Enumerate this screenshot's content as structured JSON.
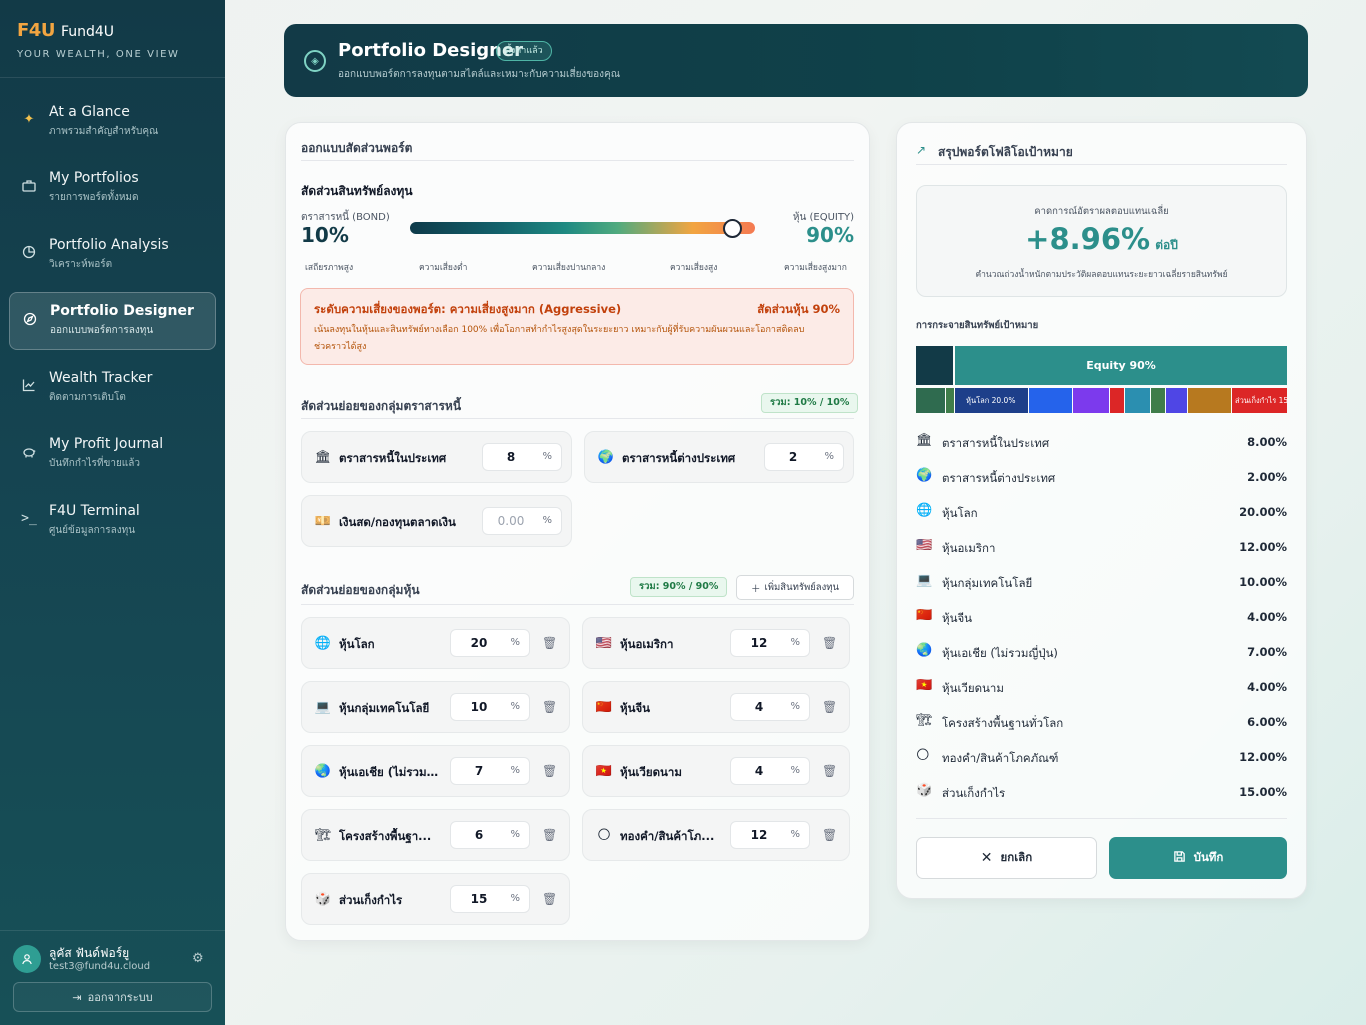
{
  "brand": {
    "logo": "F4U",
    "name": "Fund4U",
    "tagline": "YOUR WEALTH, ONE VIEW"
  },
  "nav": [
    {
      "title": "At a Glance",
      "sub": "ภาพรวมสำคัญสำหรับคุณ",
      "icon": "sparkles-icon"
    },
    {
      "title": "My Portfolios",
      "sub": "รายการพอร์ตทั้งหมด",
      "icon": "briefcase-icon"
    },
    {
      "title": "Portfolio Analysis",
      "sub": "วิเคราะห์พอร์ต",
      "icon": "pie-chart-icon"
    },
    {
      "title": "Portfolio Designer",
      "sub": "ออกแบบพอร์ตการลงทุน",
      "icon": "compass-icon",
      "active": true
    },
    {
      "title": "Wealth Tracker",
      "sub": "ติดตามการเติบโต",
      "icon": "line-chart-icon"
    },
    {
      "title": "My Profit Journal",
      "sub": "บันทึกกำไรที่ขายแล้ว",
      "icon": "piggy-bank-icon"
    },
    {
      "title": "F4U Terminal",
      "sub": "ศูนย์ข้อมูลการลงทุน",
      "icon": "terminal-icon"
    }
  ],
  "user": {
    "name": "ลูคัส ฟันด์ฟอร์ยู",
    "email": "test3@fund4u.cloud",
    "logout": "ออกจากระบบ"
  },
  "header": {
    "title": "Portfolio Designer",
    "badge": "ตั้งค่าแล้ว",
    "subtitle": "ออกแบบพอร์ตการลงทุนตามสไตล์และเหมาะกับความเสี่ยงของคุณ"
  },
  "designer": {
    "title": "ออกแบบสัดส่วนพอร์ต",
    "allocation_title": "สัดส่วนสินทรัพย์ลงทุน",
    "bond_label": "ตราสารหนี้ (BOND)",
    "bond_value": "10%",
    "equity_label": "หุ้น (EQUITY)",
    "equity_value": "90%",
    "equity_fraction": 0.9,
    "scale": [
      "เสถียรภาพสูง",
      "ความเสี่ยงต่ำ",
      "ความเสี่ยงปานกลาง",
      "ความเสี่ยงสูง",
      "ความเสี่ยงสูงมาก"
    ],
    "risk": {
      "title": "ระดับความเสี่ยงของพอร์ต: ความเสี่ยงสูงมาก (Aggressive)",
      "ratio": "สัดส่วนหุ้น 90%",
      "desc1": "เน้นลงทุนในหุ้นและสินทรัพย์ทางเลือก 100% เพื่อโอกาสทำกำไรสูงสุดในระยะยาว เหมาะกับผู้ที่รับความผันผวนและโอกาสติดลบ",
      "desc2": "ช่วคราวได้สูง"
    },
    "bond_section": {
      "title": "สัดส่วนย่อยของกลุ่มตราสารหนี้",
      "total": "รวม: 10% / 10%"
    },
    "bonds": [
      {
        "label": "ตราสารหนี้ในประเทศ",
        "value": "8",
        "icon": "bank-icon",
        "glyph": "🏛"
      },
      {
        "label": "ตราสารหนี้ต่างประเทศ",
        "value": "2",
        "icon": "globe-icon",
        "glyph": "🌍"
      },
      {
        "label": "เงินสด/กองทุนตลาดเงิน",
        "value": "0.00",
        "icon": "cash-icon",
        "glyph": "💴"
      }
    ],
    "equity_section": {
      "title": "สัดส่วนย่อยของกลุ่มหุ้น",
      "total": "รวม: 90% / 90%",
      "add": "เพิ่มสินทรัพย์ลงทุน"
    },
    "equities": [
      {
        "label": "หุ้นโลก",
        "value": "20",
        "icon": "world-icon",
        "glyph": "🌐"
      },
      {
        "label": "หุ้นอเมริกา",
        "value": "12",
        "icon": "us-flag-icon",
        "glyph": "🇺🇸"
      },
      {
        "label": "หุ้นกลุ่มเทคโนโลยี",
        "value": "10",
        "icon": "laptop-icon",
        "glyph": "💻"
      },
      {
        "label": "หุ้นจีน",
        "value": "4",
        "icon": "china-flag-icon",
        "glyph": "🇨🇳"
      },
      {
        "label": "หุ้นเอเชีย (ไม่รวม...",
        "value": "7",
        "icon": "globe-asia-icon",
        "glyph": "🌏"
      },
      {
        "label": "หุ้นเวียดนาม",
        "value": "4",
        "icon": "vietnam-flag-icon",
        "glyph": "🇻🇳"
      },
      {
        "label": "โครงสร้างพื้นฐา...",
        "value": "6",
        "icon": "crane-icon",
        "glyph": "🏗"
      },
      {
        "label": "ทองคำ/สินค้าโภ...",
        "value": "12",
        "icon": "gold-icon",
        "glyph": "🌕"
      },
      {
        "label": "ส่วนเก็งกำไร",
        "value": "15",
        "icon": "speculative-icon",
        "glyph": "🎲"
      }
    ],
    "pct": "%"
  },
  "summary": {
    "title": "สรุปพอร์ตโฟลิโอเป้าหมาย",
    "forecast_label": "คาดการณ์อัตราผลตอบแทนเฉลี่ย",
    "forecast_value": "+8.96%",
    "forecast_unit": "ต่อปี",
    "forecast_note": "คำนวณถ่วงน้ำหนักตามประวัติผลตอบแทนระยะยาวเฉลี่ยรายสินทรัพย์",
    "dist_title": "การกระจายสินทรัพย์เป้าหมาย",
    "equity_bar_label": "Equity 90%",
    "world_bar_label": "หุ้นโลก 20.0%",
    "spec_bar_label": "ส่วนเก็งกำไร 15",
    "bar_colors": {
      "bond_domestic": "#123a47",
      "bond_foreign": "#2f6b4f",
      "world": "#1d3f8a",
      "us": "#2563eb",
      "tech": "#7c3aed",
      "china": "#dc2626",
      "asia": "#2b8fb0",
      "vietnam": "#3f7d4a",
      "infra": "#4f46e5",
      "gold": "#b7791f",
      "spec": "#dc2626",
      "equity": "#2c8f8b"
    },
    "items": [
      {
        "label": "ตราสารหนี้ในประเทศ",
        "value": "8.00%",
        "icon": "bank-icon",
        "glyph": "🏛"
      },
      {
        "label": "ตราสารหนี้ต่างประเทศ",
        "value": "2.00%",
        "icon": "globe-icon",
        "glyph": "🌍"
      },
      {
        "label": "หุ้นโลก",
        "value": "20.00%",
        "icon": "world-icon",
        "glyph": "🌐"
      },
      {
        "label": "หุ้นอเมริกา",
        "value": "12.00%",
        "icon": "us-flag-icon",
        "glyph": "🇺🇸"
      },
      {
        "label": "หุ้นกลุ่มเทคโนโลยี",
        "value": "10.00%",
        "icon": "laptop-icon",
        "glyph": "💻"
      },
      {
        "label": "หุ้นจีน",
        "value": "4.00%",
        "icon": "china-flag-icon",
        "glyph": "🇨🇳"
      },
      {
        "label": "หุ้นเอเชีย (ไม่รวมญี่ปุ่น)",
        "value": "7.00%",
        "icon": "globe-asia-icon",
        "glyph": "🌏"
      },
      {
        "label": "หุ้นเวียดนาม",
        "value": "4.00%",
        "icon": "vietnam-flag-icon",
        "glyph": "🇻🇳"
      },
      {
        "label": "โครงสร้างพื้นฐานทั่วโลก",
        "value": "6.00%",
        "icon": "crane-icon",
        "glyph": "🏗"
      },
      {
        "label": "ทองคำ/สินค้าโภคภัณฑ์",
        "value": "12.00%",
        "icon": "gold-icon",
        "glyph": "🌕"
      },
      {
        "label": "ส่วนเก็งกำไร",
        "value": "15.00%",
        "icon": "speculative-icon",
        "glyph": "🎲"
      }
    ],
    "cancel": "ยกเลิก",
    "save": "บันทึก"
  }
}
